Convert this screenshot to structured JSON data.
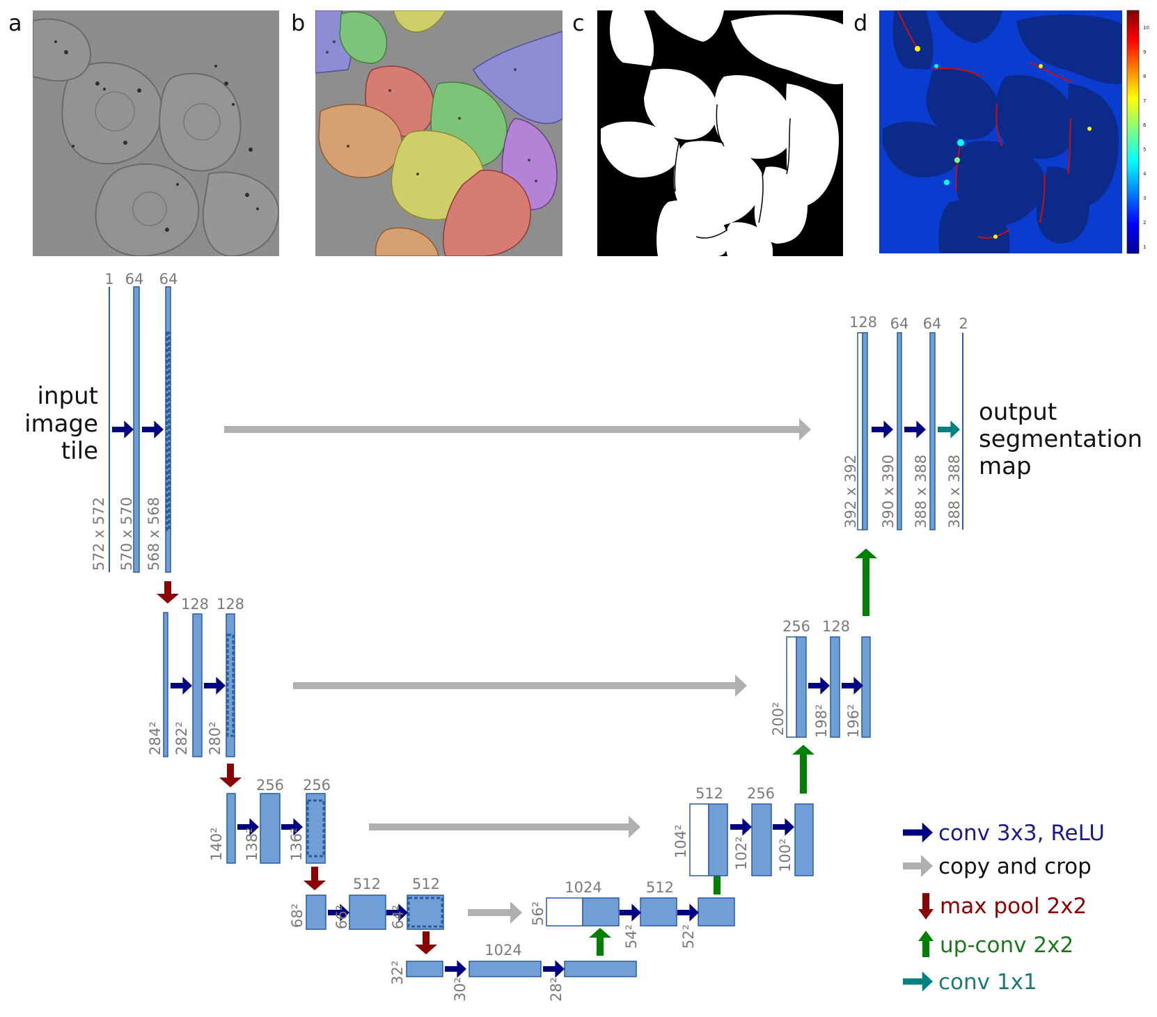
{
  "panels": [
    {
      "letter": "a",
      "kind": "micrograph"
    },
    {
      "letter": "b",
      "kind": "overlay"
    },
    {
      "letter": "c",
      "kind": "mask"
    },
    {
      "letter": "d",
      "kind": "weightmap"
    }
  ],
  "colorbar": {
    "ticks": [
      "10",
      "9",
      "8",
      "7",
      "6",
      "5",
      "4",
      "3",
      "2",
      "1"
    ]
  },
  "labels": {
    "input": [
      "input",
      "image",
      "tile"
    ],
    "output": [
      "output",
      "segmentation",
      "map"
    ]
  },
  "channels": {
    "l1": [
      "1",
      "64",
      "64"
    ],
    "l2": [
      "128",
      "128"
    ],
    "l3": [
      "256",
      "256"
    ],
    "l4": [
      "512",
      "512"
    ],
    "bottom": "1024",
    "u4": [
      "1024",
      "512"
    ],
    "u3": [
      "512",
      "256"
    ],
    "u2": [
      "256",
      "128"
    ],
    "u1": [
      "128",
      "64",
      "64",
      "2"
    ]
  },
  "sizes": {
    "l1": [
      "572 x 572",
      "570 x 570",
      "568 x 568"
    ],
    "l2": [
      "284²",
      "282²",
      "280²"
    ],
    "l3": [
      "140²",
      "138²",
      "136²"
    ],
    "l4": [
      "68²",
      "66²",
      "64²"
    ],
    "bottom": [
      "32²",
      "30²",
      "28²"
    ],
    "u4": [
      "56²",
      "54²",
      "52²"
    ],
    "u3": [
      "104²",
      "102²",
      "100²"
    ],
    "u2": [
      "200²",
      "198²",
      "196²"
    ],
    "u1": [
      "392 x 392",
      "390 x 390",
      "388 x 388",
      "388 x 388"
    ]
  },
  "legend": [
    {
      "id": "conv",
      "label": "conv 3x3, ReLU",
      "color": "#000080",
      "dir": "right"
    },
    {
      "id": "copy",
      "label": "copy and crop",
      "color": "#b0b0b0",
      "dir": "right"
    },
    {
      "id": "pool",
      "label": "max pool 2x2",
      "color": "#8b0000",
      "dir": "down"
    },
    {
      "id": "upconv",
      "label": "up-conv 2x2",
      "color": "#008000",
      "dir": "up"
    },
    {
      "id": "conv1x1",
      "label": "conv 1x1",
      "color": "#008080",
      "dir": "right"
    }
  ],
  "colors": {
    "blob": "#6f9fd6",
    "blob_stroke": "#2a5aa0",
    "dim_text": "#7a7a7a",
    "conv": "#000080",
    "copy": "#b0b0b0",
    "pool": "#8b0000",
    "upconv": "#008000",
    "conv1x1": "#008080",
    "legend_conv_text": "#1a1a8c",
    "legend_copy_text": "#111111",
    "legend_pool_text": "#8b0000",
    "legend_upconv_text": "#1a7a1a",
    "legend_conv1x1_text": "#1a7a7a"
  }
}
